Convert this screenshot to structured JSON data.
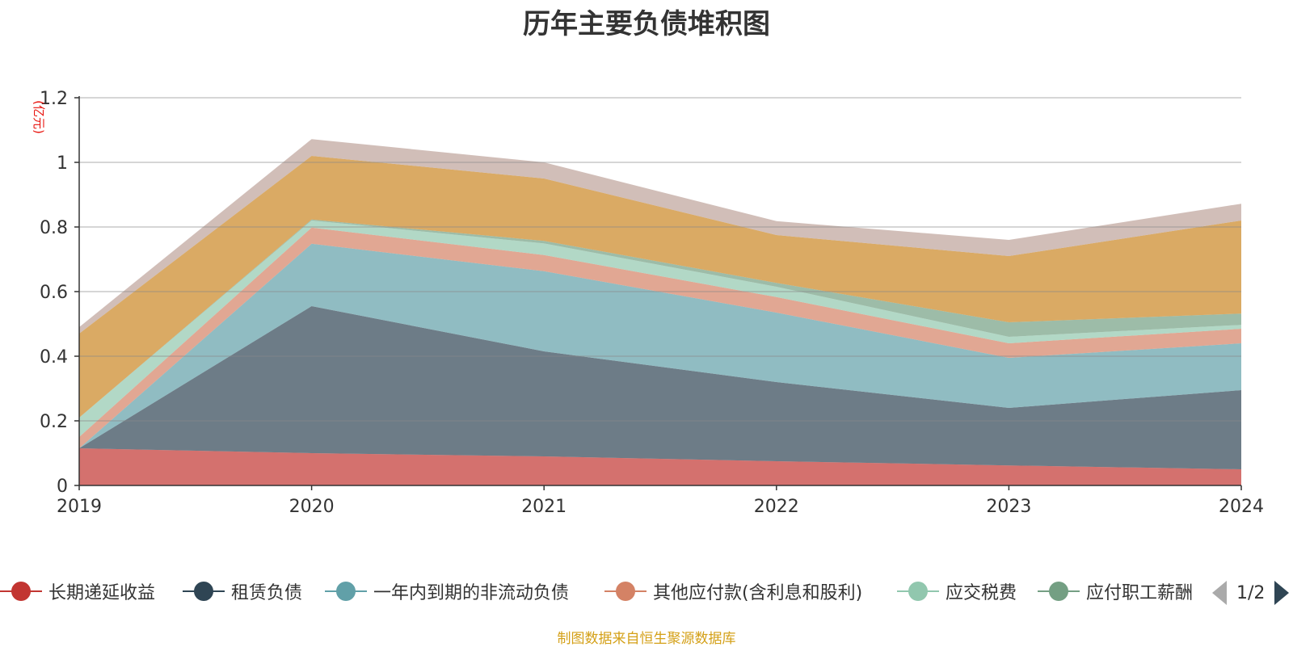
{
  "title": "历年主要负债堆积图",
  "source": "制图数据来自恒生聚源数据库",
  "legend_pager": "1/2",
  "chart_data": {
    "type": "area",
    "stacked": true,
    "title": "历年主要负债堆积图",
    "ylabel": "(亿元)",
    "xlabel": "",
    "x": [
      "2019",
      "2020",
      "2021",
      "2022",
      "2023",
      "2024"
    ],
    "ylim": [
      0,
      1.2
    ],
    "yticks": [
      0,
      0.2,
      0.4,
      0.6,
      0.8,
      1,
      1.2
    ],
    "ytick_labels": [
      "0",
      "0.2",
      "0.4",
      "0.6",
      "0.8",
      "1",
      "1.2"
    ],
    "grid": true,
    "legend_position": "bottom",
    "series": [
      {
        "name": "长期递延收益",
        "color": "#c23531",
        "values": [
          0.115,
          0.1,
          0.09,
          0.075,
          0.062,
          0.05
        ]
      },
      {
        "name": "租赁负债",
        "color": "#2f4554",
        "values": [
          0.0,
          0.455,
          0.325,
          0.245,
          0.178,
          0.245
        ]
      },
      {
        "name": "一年内到期的非流动负债",
        "color": "#61a0a8",
        "values": [
          0.0,
          0.193,
          0.248,
          0.215,
          0.155,
          0.145
        ]
      },
      {
        "name": "其他应付款(含利息和股利)",
        "color": "#d48265",
        "values": [
          0.035,
          0.05,
          0.05,
          0.048,
          0.045,
          0.045
        ]
      },
      {
        "name": "应交税费",
        "color": "#91c7ae",
        "values": [
          0.06,
          0.022,
          0.036,
          0.032,
          0.02,
          0.012
        ]
      },
      {
        "name": "应付职工薪酬",
        "color": "#749f83",
        "values": [
          0.0,
          0.003,
          0.008,
          0.012,
          0.045,
          0.035
        ]
      },
      {
        "name": "",
        "color": "#ca8622",
        "values": [
          0.26,
          0.197,
          0.193,
          0.148,
          0.205,
          0.288
        ]
      },
      {
        "name": "",
        "color": "#bda29a",
        "values": [
          0.02,
          0.052,
          0.05,
          0.043,
          0.05,
          0.052
        ]
      }
    ]
  }
}
